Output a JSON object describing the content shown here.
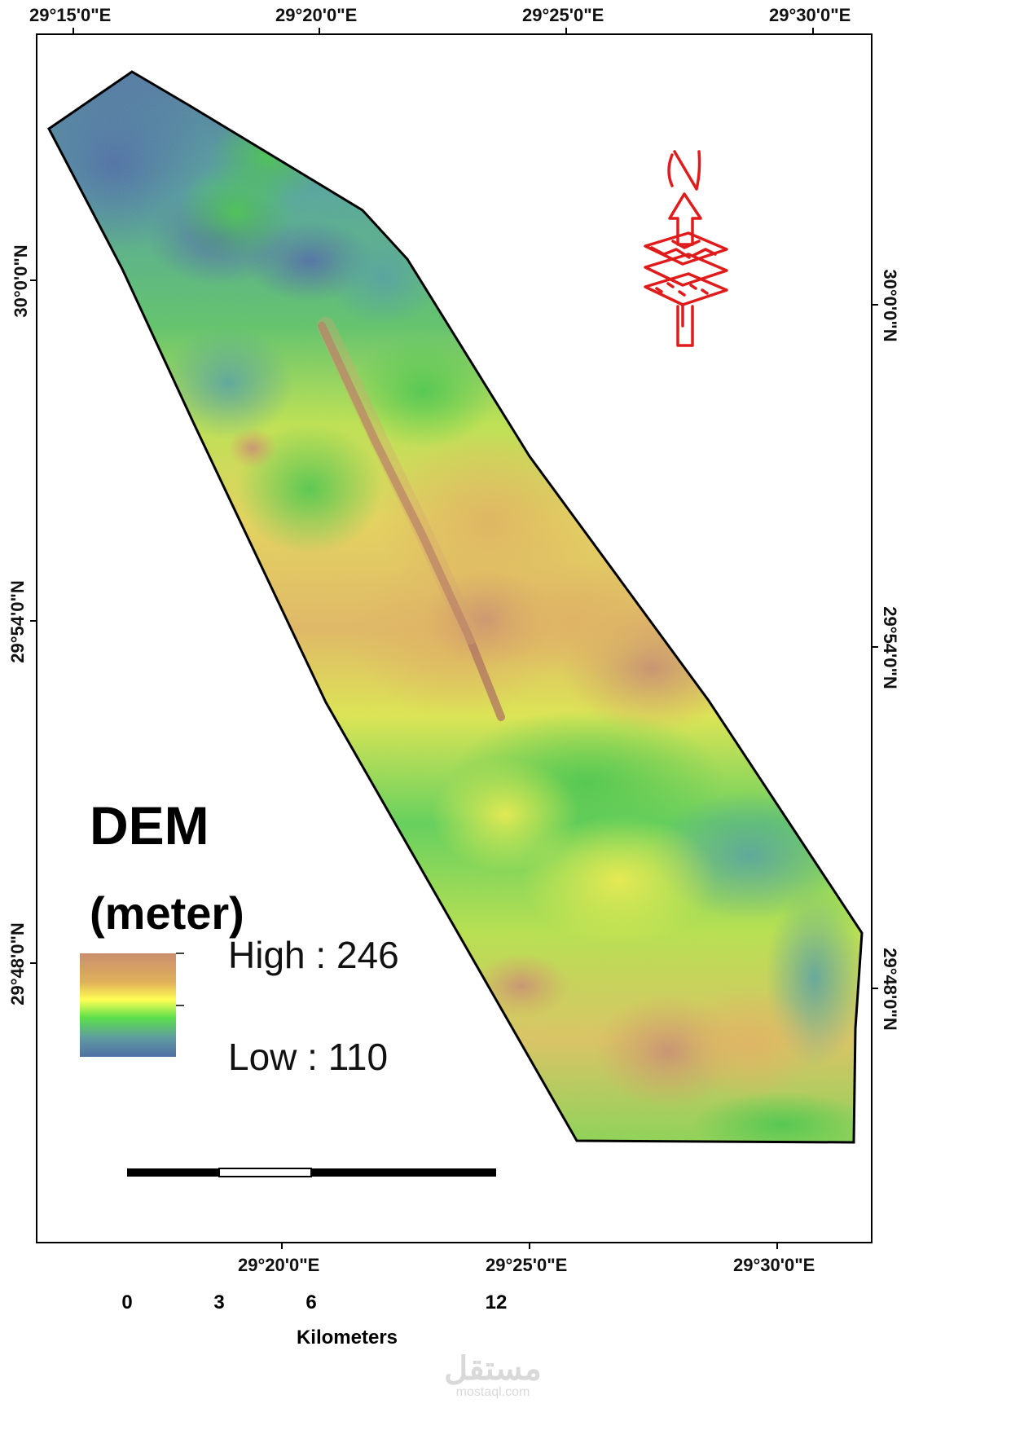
{
  "map": {
    "top_labels": [
      "29°15'0\"E",
      "29°20'0\"E",
      "29°25'0\"E",
      "29°30'0\"E"
    ],
    "bottom_labels": [
      "29°20'0\"E",
      "29°25'0\"E",
      "29°30'0\"E"
    ],
    "left_labels": [
      "30°0'0\"N",
      "29°54'0\"N",
      "29°48'0\"N"
    ],
    "right_labels": [
      "30°0'0\"N",
      "29°54'0\"N",
      "29°48'0\"N"
    ]
  },
  "legend": {
    "title": "DEM",
    "unit": "(meter)",
    "high_label": "High : 246",
    "low_label": "Low : 110",
    "colors": [
      "#c98f6e",
      "#e0b05a",
      "#ffff55",
      "#5de04a",
      "#5e9aa0",
      "#4f70a5"
    ]
  },
  "scalebar": {
    "ticks": [
      "0",
      "3",
      "6",
      "12"
    ],
    "unit": "Kilometers"
  },
  "north_arrow": {
    "icon": "north-arrow-icon",
    "letter": "N",
    "color": "#e01b1b"
  },
  "watermark": {
    "text": "مستقل",
    "sub": "mostaql.com"
  }
}
